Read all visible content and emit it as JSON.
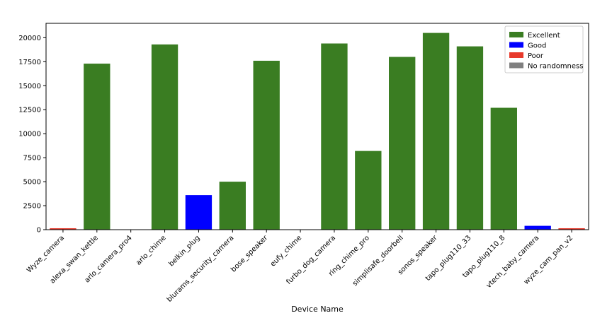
{
  "chart_data": {
    "type": "bar",
    "xlabel": "Device Name",
    "ylabel": "",
    "title": "",
    "ylim": [
      0,
      21500
    ],
    "yticks": [
      0,
      2500,
      5000,
      7500,
      10000,
      12500,
      15000,
      17500,
      20000
    ],
    "grid": false,
    "legend_position": "top-right",
    "categories": [
      "Wyze_camera",
      "alexa_swan_kettle",
      "arlo_camera_pro4",
      "arlo_chime",
      "belkin_plug",
      "blurams_security_camera",
      "bose_speaker",
      "eufy_chime",
      "furbo_dog_camera",
      "ring_chime_pro",
      "simplisafe_doorbell",
      "sonos_speaker",
      "tapo_plug110_33",
      "tapo_plug110_8",
      "vtech_baby_camera",
      "wyze_cam_pan_v2"
    ],
    "values": [
      150,
      17300,
      0,
      19300,
      3600,
      5000,
      17600,
      0,
      19400,
      8200,
      18000,
      20500,
      19100,
      12700,
      400,
      150
    ],
    "classes": [
      "Poor",
      "Excellent",
      "No randomness",
      "Excellent",
      "Good",
      "Excellent",
      "Excellent",
      "No randomness",
      "Excellent",
      "Excellent",
      "Excellent",
      "Excellent",
      "Excellent",
      "Excellent",
      "Good",
      "Poor"
    ],
    "legend": [
      {
        "label": "Excellent",
        "color": "#3a7d22"
      },
      {
        "label": "Good",
        "color": "#0000ff"
      },
      {
        "label": "Poor",
        "color": "#e8392b"
      },
      {
        "label": "No randomness",
        "color": "#808080"
      }
    ]
  }
}
